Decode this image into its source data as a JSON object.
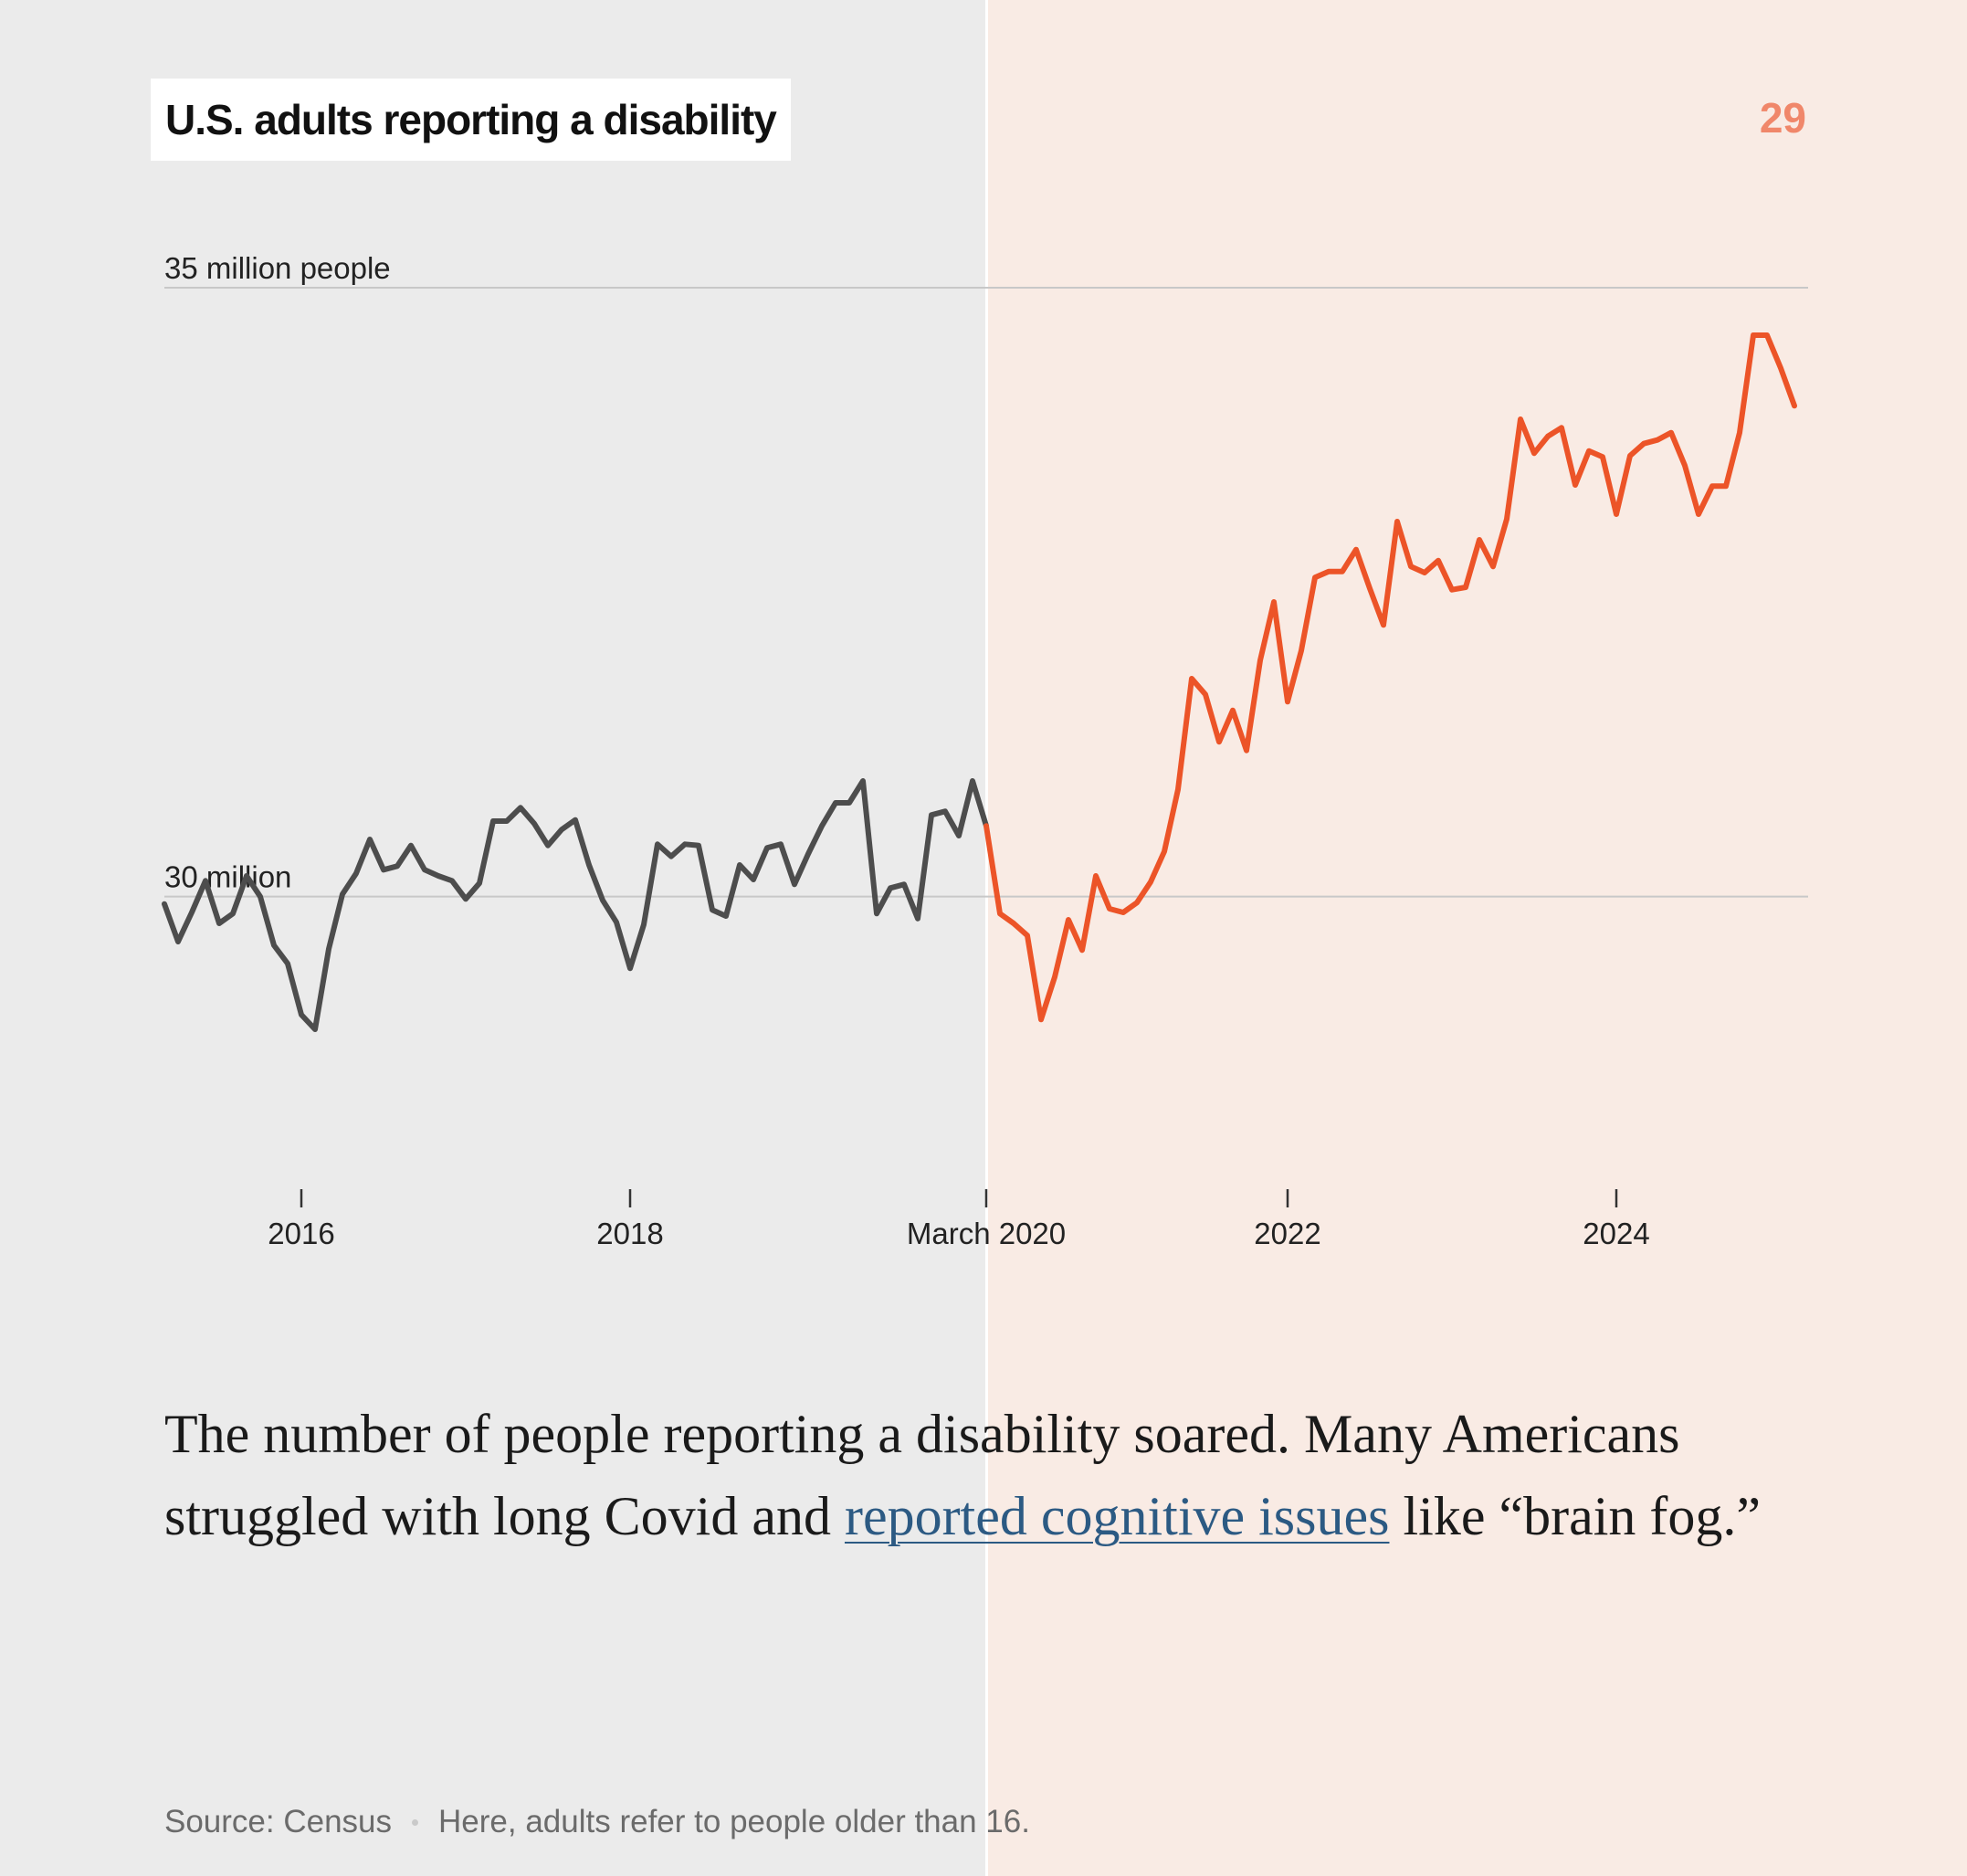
{
  "title": "U.S. adults reporting a disability",
  "page_number": "29",
  "caption": {
    "before_link": "The number of people reporting a disability soared. Many Americans struggled with long Covid and ",
    "link_text": "reported cognitive issues",
    "after_link": " like “brain fog.”"
  },
  "footer": {
    "source": "Source: Census",
    "note": "Here, adults refer to people older than 16."
  },
  "colors": {
    "before": "#4d4d4d",
    "after": "#ec5428",
    "gridline": "#c8c8c8",
    "page_number": "#f0876a",
    "link": "#2c5a83"
  },
  "chart_data": {
    "type": "line",
    "title": "U.S. adults reporting a disability",
    "xlabel": "",
    "ylabel": "",
    "ylim": [
      27.5,
      35.0
    ],
    "xlim": [
      "2015-03",
      "2025-03"
    ],
    "grid": true,
    "y_ticks": [
      {
        "value": 35,
        "label": "35 million people"
      },
      {
        "value": 30,
        "label": "30 million"
      }
    ],
    "x_ticks": [
      {
        "date": "2016-01",
        "label": "2016"
      },
      {
        "date": "2018-01",
        "label": "2018"
      },
      {
        "date": "2020-03",
        "label": "March 2020"
      },
      {
        "date": "2022-01",
        "label": "2022"
      },
      {
        "date": "2024-01",
        "label": "2024"
      }
    ],
    "split_date": "2020-03",
    "series": [
      {
        "segment": "before",
        "points": [
          [
            "2015-03",
            29.94
          ],
          [
            "2015-04",
            29.63
          ],
          [
            "2015-05",
            29.87
          ],
          [
            "2015-06",
            30.13
          ],
          [
            "2015-07",
            29.78
          ],
          [
            "2015-08",
            29.86
          ],
          [
            "2015-09",
            30.17
          ],
          [
            "2015-10",
            30.0
          ],
          [
            "2015-11",
            29.6
          ],
          [
            "2015-12",
            29.45
          ],
          [
            "2016-01",
            29.03
          ],
          [
            "2016-02",
            28.91
          ],
          [
            "2016-03",
            29.57
          ],
          [
            "2016-04",
            30.02
          ],
          [
            "2016-05",
            30.19
          ],
          [
            "2016-06",
            30.47
          ],
          [
            "2016-07",
            30.22
          ],
          [
            "2016-08",
            30.25
          ],
          [
            "2016-09",
            30.42
          ],
          [
            "2016-10",
            30.22
          ],
          [
            "2016-11",
            30.17
          ],
          [
            "2016-12",
            30.13
          ],
          [
            "2017-01",
            29.98
          ],
          [
            "2017-02",
            30.11
          ],
          [
            "2017-03",
            30.62
          ],
          [
            "2017-04",
            30.62
          ],
          [
            "2017-05",
            30.73
          ],
          [
            "2017-06",
            30.6
          ],
          [
            "2017-07",
            30.42
          ],
          [
            "2017-08",
            30.55
          ],
          [
            "2017-09",
            30.63
          ],
          [
            "2017-10",
            30.26
          ],
          [
            "2017-11",
            29.97
          ],
          [
            "2017-12",
            29.79
          ],
          [
            "2018-01",
            29.41
          ],
          [
            "2018-02",
            29.77
          ],
          [
            "2018-03",
            30.43
          ],
          [
            "2018-04",
            30.33
          ],
          [
            "2018-05",
            30.43
          ],
          [
            "2018-06",
            30.42
          ],
          [
            "2018-07",
            29.89
          ],
          [
            "2018-08",
            29.84
          ],
          [
            "2018-09",
            30.26
          ],
          [
            "2018-10",
            30.14
          ],
          [
            "2018-11",
            30.4
          ],
          [
            "2018-12",
            30.43
          ],
          [
            "2019-01",
            30.1
          ],
          [
            "2019-02",
            30.35
          ],
          [
            "2019-03",
            30.58
          ],
          [
            "2019-04",
            30.77
          ],
          [
            "2019-05",
            30.77
          ],
          [
            "2019-06",
            30.95
          ],
          [
            "2019-07",
            29.86
          ],
          [
            "2019-08",
            30.07
          ],
          [
            "2019-09",
            30.1
          ],
          [
            "2019-10",
            29.82
          ],
          [
            "2019-11",
            30.67
          ],
          [
            "2019-12",
            30.7
          ],
          [
            "2020-01",
            30.5
          ],
          [
            "2020-02",
            30.95
          ],
          [
            "2020-03",
            30.58
          ]
        ]
      },
      {
        "segment": "after",
        "points": [
          [
            "2020-03",
            30.58
          ],
          [
            "2020-04",
            29.86
          ],
          [
            "2020-05",
            29.78
          ],
          [
            "2020-06",
            29.68
          ],
          [
            "2020-07",
            28.99
          ],
          [
            "2020-08",
            29.34
          ],
          [
            "2020-09",
            29.81
          ],
          [
            "2020-10",
            29.56
          ],
          [
            "2020-11",
            30.17
          ],
          [
            "2020-12",
            29.9
          ],
          [
            "2021-01",
            29.87
          ],
          [
            "2021-02",
            29.95
          ],
          [
            "2021-03",
            30.12
          ],
          [
            "2021-04",
            30.37
          ],
          [
            "2021-05",
            30.88
          ],
          [
            "2021-06",
            31.79
          ],
          [
            "2021-07",
            31.66
          ],
          [
            "2021-08",
            31.27
          ],
          [
            "2021-09",
            31.53
          ],
          [
            "2021-10",
            31.2
          ],
          [
            "2021-11",
            31.94
          ],
          [
            "2021-12",
            32.42
          ],
          [
            "2022-01",
            31.6
          ],
          [
            "2022-02",
            32.02
          ],
          [
            "2022-03",
            32.62
          ],
          [
            "2022-04",
            32.67
          ],
          [
            "2022-05",
            32.67
          ],
          [
            "2022-06",
            32.85
          ],
          [
            "2022-07",
            32.53
          ],
          [
            "2022-08",
            32.23
          ],
          [
            "2022-09",
            33.08
          ],
          [
            "2022-10",
            32.71
          ],
          [
            "2022-11",
            32.66
          ],
          [
            "2022-12",
            32.76
          ],
          [
            "2023-01",
            32.52
          ],
          [
            "2023-02",
            32.54
          ],
          [
            "2023-03",
            32.93
          ],
          [
            "2023-04",
            32.71
          ],
          [
            "2023-05",
            33.1
          ],
          [
            "2023-06",
            33.92
          ],
          [
            "2023-07",
            33.64
          ],
          [
            "2023-08",
            33.78
          ],
          [
            "2023-09",
            33.85
          ],
          [
            "2023-10",
            33.38
          ],
          [
            "2023-11",
            33.66
          ],
          [
            "2023-12",
            33.61
          ],
          [
            "2024-01",
            33.14
          ],
          [
            "2024-02",
            33.62
          ],
          [
            "2024-03",
            33.72
          ],
          [
            "2024-04",
            33.75
          ],
          [
            "2024-05",
            33.81
          ],
          [
            "2024-06",
            33.54
          ],
          [
            "2024-07",
            33.14
          ],
          [
            "2024-08",
            33.37
          ],
          [
            "2024-09",
            33.37
          ],
          [
            "2024-10",
            33.81
          ],
          [
            "2024-11",
            34.61
          ],
          [
            "2024-12",
            34.61
          ],
          [
            "2025-01",
            34.34
          ],
          [
            "2025-02",
            34.03
          ]
        ]
      }
    ]
  }
}
